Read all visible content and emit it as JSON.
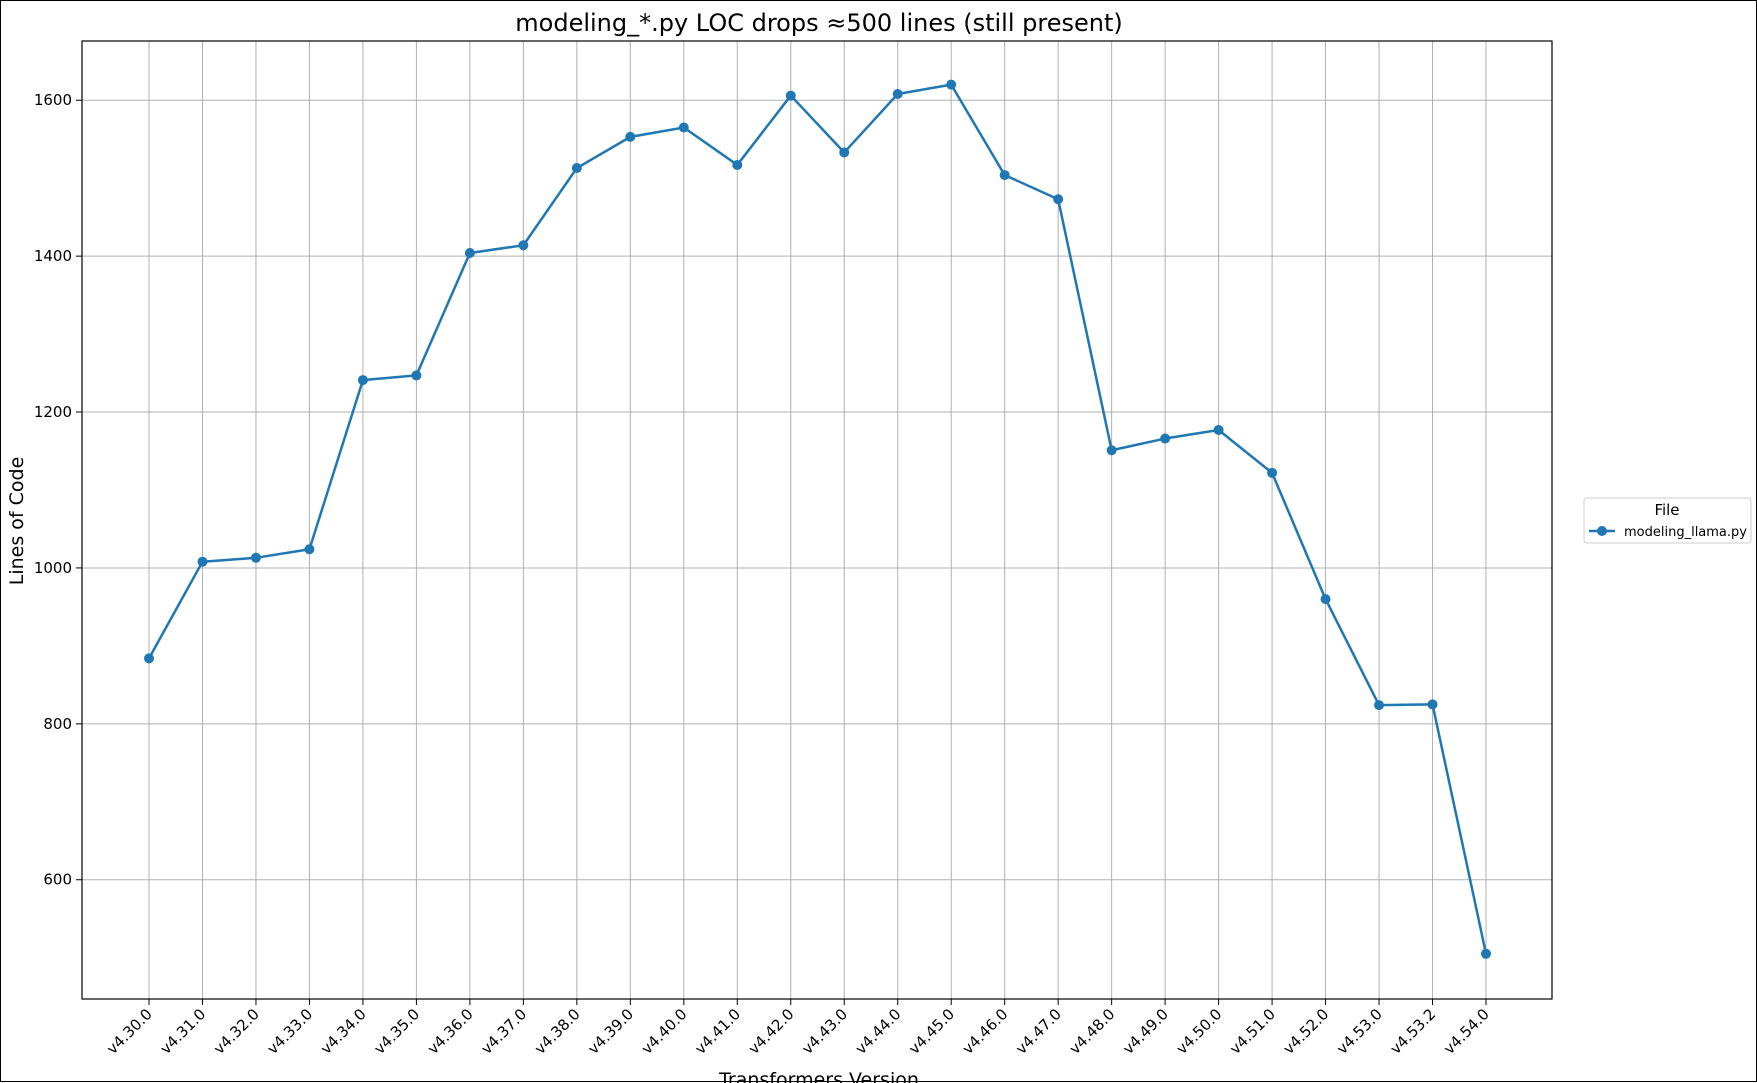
{
  "chart_data": {
    "type": "line",
    "title": "modeling_*.py LOC drops ≈500 lines (still present)",
    "xlabel": "Transformers Version",
    "ylabel": "Lines of Code",
    "categories": [
      "v4.30.0",
      "v4.31.0",
      "v4.32.0",
      "v4.33.0",
      "v4.34.0",
      "v4.35.0",
      "v4.36.0",
      "v4.37.0",
      "v4.38.0",
      "v4.39.0",
      "v4.40.0",
      "v4.41.0",
      "v4.42.0",
      "v4.43.0",
      "v4.44.0",
      "v4.45.0",
      "v4.46.0",
      "v4.47.0",
      "v4.48.0",
      "v4.49.0",
      "v4.50.0",
      "v4.51.0",
      "v4.52.0",
      "v4.53.0",
      "v4.53.2",
      "v4.54.0"
    ],
    "series": [
      {
        "name": "modeling_llama.py",
        "color": "#1f77b4",
        "values": [
          884,
          1008,
          1013,
          1024,
          1241,
          1247,
          1404,
          1414,
          1513,
          1553,
          1565,
          1517,
          1606,
          1533,
          1608,
          1620,
          1504,
          1473,
          1151,
          1166,
          1177,
          1122,
          960,
          824,
          825,
          505
        ]
      }
    ],
    "ylim": [
      447,
      1676
    ],
    "yticks": [
      600,
      800,
      1000,
      1200,
      1400,
      1600
    ],
    "grid": true,
    "legend": {
      "title": "File",
      "placement": "right-outside"
    }
  }
}
